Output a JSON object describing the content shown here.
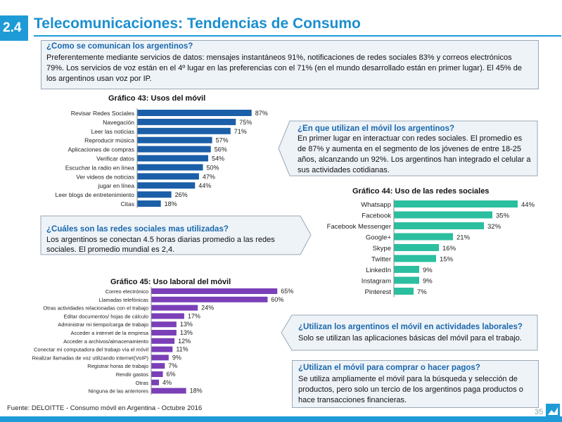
{
  "header": {
    "section": "2.4",
    "title": "Telecomunicaciones: Tendencias de Consumo"
  },
  "box1": {
    "question": "¿Como se comunican los argentinos?",
    "lines": [
      "Preferentemente mediante servicios de datos: mensajes instantáneos 91%, notificaciones de redes sociales 83% y correos electrónicos",
      "79%. Los servicios de voz están en el 4º lugar en las preferencias con el 71% (en el mundo desarrollado están en primer lugar). El 45% de",
      "los argentinos usan voz por IP."
    ]
  },
  "box2": {
    "question": "¿En que utilizan el móvil los argentinos?",
    "lines": [
      "En primer lugar en interactuar con redes sociales. El promedio es",
      "de 87% y aumenta en el segmento de los jóvenes de  entre 18-25",
      "años, alcanzando un 92%. Los argentinos han integrado el celular a",
      "sus actividades cotidianas."
    ]
  },
  "box3": {
    "question": "¿Cuáles son las redes sociales mas utilizadas?",
    "lines": [
      "Los argentinos se conectan 4.5 horas diarias promedio a las redes",
      "sociales. El promedio mundial es 2,4."
    ]
  },
  "box4": {
    "question": "¿Utilizan los argentinos el móvil en actividades laborales?",
    "lines": [
      "Solo se utilizan las aplicaciones básicas del móvil para el trabajo."
    ]
  },
  "box5": {
    "question": "¿Utilizan el móvil para comprar o hacer pagos?",
    "lines": [
      "Se utiliza ampliamente el móvil para la búsqueda y selección de",
      "productos, pero solo un tercio de los argentinos paga productos o",
      "hace transacciones financieras."
    ]
  },
  "footer": {
    "source": "Fuente: DELOITTE  - Consumo móvil en Argentina - Octubre 2016",
    "page": "35"
  },
  "colors": {
    "accent": "#1e9bd7",
    "chart43": "#1b5fa8",
    "chart44": "#2bbf9f",
    "chart45": "#7b3fb8"
  },
  "chart_data": [
    {
      "type": "bar",
      "orientation": "horizontal",
      "title": "Gráfico 43: Usos del móvil",
      "categories": [
        "Revisar Redes Sociales",
        "Navegación",
        "Leer las noticias",
        "Reproducir música",
        "Aplicaciones de compras",
        "Verificar datos",
        "Escuchar la radio en línea",
        "Ver videos de noticias",
        "jugar en línea",
        "Leer blogs de entretenimiento",
        "Citas"
      ],
      "values": [
        87,
        75,
        71,
        57,
        56,
        54,
        50,
        47,
        44,
        26,
        18
      ],
      "labels": [
        "87%",
        "75%",
        "71%",
        "57%",
        "56%",
        "54%",
        "50%",
        "47%",
        "44%",
        "26%",
        "18%"
      ],
      "xlim": [
        0,
        100
      ]
    },
    {
      "type": "bar",
      "orientation": "horizontal",
      "title": "Gráfico 44: Uso de las redes sociales",
      "categories": [
        "Whatsapp",
        "Facebook",
        "Facebook Messenger",
        "Google+",
        "Skype",
        "Twitter",
        "LinkedIn",
        "Instagram",
        "Pinterest"
      ],
      "values": [
        44,
        35,
        32,
        21,
        16,
        15,
        9,
        9,
        7
      ],
      "labels": [
        "44%",
        "35%",
        "32%",
        "21%",
        "16%",
        "15%",
        "9%",
        "9%",
        "7%"
      ],
      "xlim": [
        0,
        50
      ]
    },
    {
      "type": "bar",
      "orientation": "horizontal",
      "title": "Gráfico 45: Uso laboral del móvil",
      "categories": [
        "Correo electrónico",
        "Llamadas telefónicas",
        "Otras actividades relacionadas con el trabajo",
        "Editar documentos/ hojas de cálculo",
        "Administrar mi tiempo/carga de trabajo",
        "Acceder a internet de la empresa",
        "Acceder a archivos/almacenamiento",
        "Conectar mi computadora del trabajo vía el móvil",
        "Realizar llamadas de voz utilizando internet(VoIP)",
        "Registrar horas de trabajo",
        "Rendir gastos",
        "Otras",
        "Ninguna de las anteriores"
      ],
      "values": [
        65,
        60,
        24,
        17,
        13,
        13,
        12,
        11,
        9,
        7,
        6,
        4,
        18
      ],
      "labels": [
        "65%",
        "60%",
        "24%",
        "17%",
        "13%",
        "13%",
        "12%",
        "11%",
        "9%",
        "7%",
        "6%",
        "4%",
        "18%"
      ],
      "xlim": [
        0,
        70
      ]
    }
  ]
}
